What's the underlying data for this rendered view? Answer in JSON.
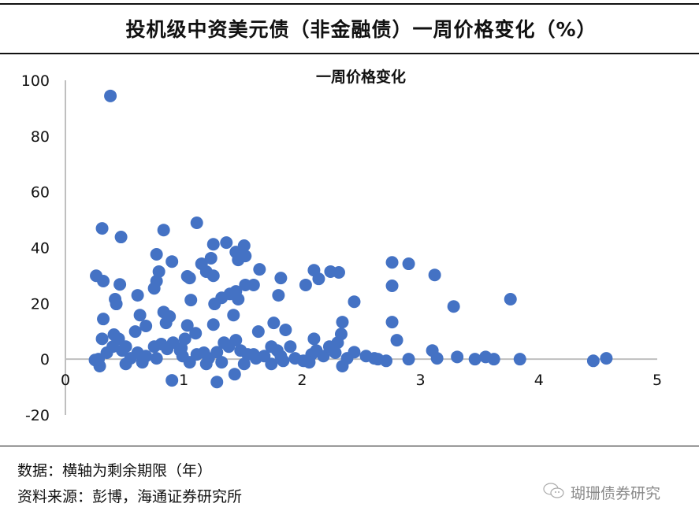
{
  "header": {
    "title": "投机级中资美元债（非金融债）一周价格变化（%）"
  },
  "footer": {
    "note": "数据：横轴为剩余期限（年）",
    "source": "资料来源：彭博，海通证券研究所",
    "watermark": "瑚珊债券研究"
  },
  "colors": {
    "marker": "#4472C4",
    "axis": "#BFBFBF"
  },
  "chart_data": {
    "type": "scatter",
    "title": "一周价格变化",
    "xlabel": "",
    "ylabel": "",
    "xlim": [
      0,
      5
    ],
    "ylim": [
      -20,
      100
    ],
    "xticks": [
      "0",
      "1",
      "2",
      "3",
      "4",
      "5"
    ],
    "yticks": [
      "-20",
      "0",
      "20",
      "40",
      "60",
      "80",
      "100"
    ],
    "grid": false,
    "legend": "none",
    "points": [
      [
        0.38,
        94.4
      ],
      [
        0.31,
        46.9
      ],
      [
        0.47,
        43.8
      ],
      [
        1.11,
        48.9
      ],
      [
        0.83,
        46.3
      ],
      [
        0.26,
        29.9
      ],
      [
        0.32,
        28
      ],
      [
        0.46,
        26.8
      ],
      [
        0.42,
        21.5
      ],
      [
        0.43,
        19.8
      ],
      [
        0.32,
        14.4
      ],
      [
        0.61,
        22.9
      ],
      [
        0.77,
        37.6
      ],
      [
        0.9,
        35
      ],
      [
        0.79,
        31.4
      ],
      [
        0.77,
        28
      ],
      [
        0.75,
        25.4
      ],
      [
        1.03,
        29.7
      ],
      [
        1.05,
        29.1
      ],
      [
        1.06,
        21.2
      ],
      [
        0.83,
        16.9
      ],
      [
        0.88,
        15.3
      ],
      [
        0.85,
        13
      ],
      [
        0.63,
        15.8
      ],
      [
        0.68,
        11.9
      ],
      [
        0.59,
        9.9
      ],
      [
        1.03,
        12.1
      ],
      [
        1.1,
        9.3
      ],
      [
        1.15,
        34.2
      ],
      [
        1.19,
        31.4
      ],
      [
        1.25,
        29.9
      ],
      [
        1.23,
        36.2
      ],
      [
        1.25,
        41.2
      ],
      [
        1.36,
        41.8
      ],
      [
        1.44,
        38.4
      ],
      [
        1.51,
        40.7
      ],
      [
        1.46,
        35.6
      ],
      [
        1.52,
        37
      ],
      [
        1.64,
        32.2
      ],
      [
        1.59,
        26.6
      ],
      [
        1.52,
        26.6
      ],
      [
        1.44,
        24.3
      ],
      [
        1.46,
        21.5
      ],
      [
        1.39,
        23.4
      ],
      [
        1.32,
        22
      ],
      [
        1.26,
        19.8
      ],
      [
        1.42,
        15.8
      ],
      [
        1.25,
        12.4
      ],
      [
        1.82,
        29.1
      ],
      [
        1.8,
        22.9
      ],
      [
        1.63,
        9.9
      ],
      [
        1.76,
        13
      ],
      [
        1.86,
        10.5
      ],
      [
        2.03,
        26.6
      ],
      [
        2.1,
        31.9
      ],
      [
        2.14,
        28.8
      ],
      [
        2.24,
        31.4
      ],
      [
        2.31,
        31.1
      ],
      [
        2.44,
        20.6
      ],
      [
        2.34,
        13.3
      ],
      [
        2.33,
        9
      ],
      [
        2.3,
        5.9
      ],
      [
        2.1,
        7.3
      ],
      [
        2.76,
        34.7
      ],
      [
        2.9,
        34.2
      ],
      [
        2.76,
        26.3
      ],
      [
        2.76,
        13.3
      ],
      [
        2.8,
        6.8
      ],
      [
        3.12,
        30.2
      ],
      [
        3.28,
        18.9
      ],
      [
        3.76,
        21.5
      ],
      [
        3.1,
        3.1
      ],
      [
        3.14,
        0.3
      ],
      [
        3.31,
        0.8
      ],
      [
        3.46,
        0
      ],
      [
        3.55,
        0.8
      ],
      [
        3.62,
        0
      ],
      [
        3.84,
        0
      ],
      [
        4.46,
        -0.6
      ],
      [
        4.57,
        0.3
      ],
      [
        2.9,
        0
      ],
      [
        2.61,
        0.3
      ],
      [
        2.71,
        -0.6
      ],
      [
        2.64,
        0
      ],
      [
        2.34,
        -2.5
      ],
      [
        2.44,
        2.5
      ],
      [
        0.9,
        -7.6
      ],
      [
        1.28,
        -8.2
      ],
      [
        1.43,
        -5.4
      ],
      [
        1.51,
        -1.7
      ],
      [
        0.29,
        -2.5
      ],
      [
        0.28,
        0
      ],
      [
        0.35,
        2.3
      ],
      [
        0.4,
        4.5
      ],
      [
        0.45,
        7.3
      ],
      [
        0.48,
        3.1
      ],
      [
        0.55,
        0.3
      ],
      [
        0.61,
        2.3
      ],
      [
        0.68,
        1.1
      ],
      [
        0.75,
        4.5
      ],
      [
        0.81,
        5.4
      ],
      [
        0.86,
        3.7
      ],
      [
        0.91,
        5.9
      ],
      [
        0.97,
        3.1
      ],
      [
        0.99,
        1.1
      ],
      [
        1.05,
        -1.1
      ],
      [
        1.11,
        1.7
      ],
      [
        1.17,
        2.3
      ],
      [
        1.21,
        0.3
      ],
      [
        1.28,
        2.5
      ],
      [
        1.34,
        5.9
      ],
      [
        1.38,
        4.5
      ],
      [
        1.44,
        6.8
      ],
      [
        1.48,
        3.1
      ],
      [
        1.54,
        1.7
      ],
      [
        1.61,
        0.3
      ],
      [
        1.68,
        1.1
      ],
      [
        1.74,
        4.5
      ],
      [
        1.79,
        3.1
      ],
      [
        1.84,
        -0.6
      ],
      [
        1.9,
        4.5
      ],
      [
        1.94,
        0.3
      ],
      [
        2.01,
        -0.6
      ],
      [
        2.08,
        1.7
      ],
      [
        2.12,
        3.1
      ],
      [
        2.18,
        1.1
      ],
      [
        2.23,
        4.5
      ],
      [
        2.28,
        2.3
      ],
      [
        0.31,
        7.3
      ],
      [
        0.41,
        8.8
      ],
      [
        0.51,
        4.5
      ],
      [
        0.77,
        0.3
      ],
      [
        0.65,
        -1.1
      ],
      [
        0.98,
        4.0
      ],
      [
        1.19,
        -1.7
      ],
      [
        1.32,
        -1.1
      ],
      [
        1.59,
        1.7
      ],
      [
        1.74,
        -1.7
      ],
      [
        1.82,
        1.1
      ],
      [
        2.06,
        -1.1
      ],
      [
        2.38,
        0.3
      ],
      [
        2.54,
        1.1
      ],
      [
        1.01,
        7.3
      ],
      [
        0.51,
        -1.7
      ],
      [
        0.25,
        -0.3
      ]
    ]
  }
}
